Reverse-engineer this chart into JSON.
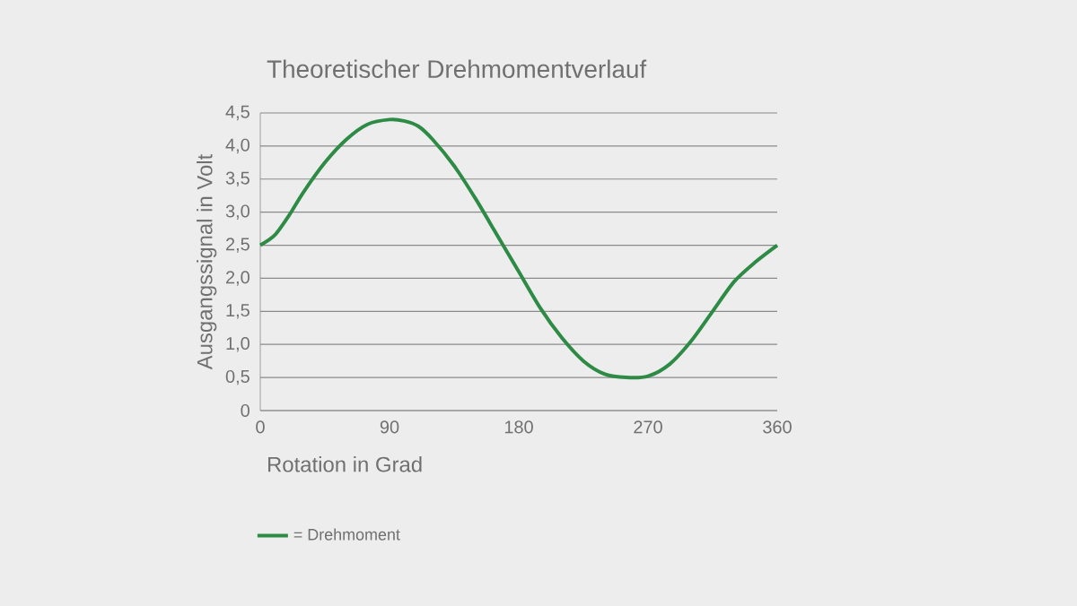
{
  "chart_data": {
    "type": "line",
    "title": "Theoretischer Drehmomentverlauf",
    "xlabel": "Rotation in Grad",
    "ylabel": "Ausgangssignal in Volt",
    "x": [
      0,
      10,
      20,
      30,
      45,
      60,
      75,
      90,
      100,
      110,
      120,
      135,
      150,
      165,
      180,
      195,
      210,
      225,
      240,
      255,
      270,
      285,
      300,
      315,
      330,
      345,
      360
    ],
    "series": [
      {
        "name": "= Drehmoment",
        "color": "#2e8b45",
        "values": [
          2.5,
          2.65,
          2.95,
          3.3,
          3.75,
          4.1,
          4.33,
          4.4,
          4.38,
          4.3,
          4.1,
          3.7,
          3.2,
          2.65,
          2.1,
          1.55,
          1.1,
          0.75,
          0.55,
          0.5,
          0.52,
          0.7,
          1.05,
          1.5,
          1.95,
          2.25,
          2.5
        ]
      }
    ],
    "xlim": [
      0,
      360
    ],
    "xticks": [
      0,
      90,
      180,
      270,
      360
    ],
    "ylim": [
      0,
      4.5
    ],
    "yticks": [
      0,
      {
        "value": 0.5,
        "label": "0,5"
      },
      {
        "value": 1,
        "label": "1,0"
      },
      {
        "value": 1.5,
        "label": "1,5"
      },
      {
        "value": 2,
        "label": "2,0"
      },
      {
        "value": 2.5,
        "label": "2,5"
      },
      {
        "value": 3,
        "label": "3,0"
      },
      {
        "value": 3.5,
        "label": "3,5"
      },
      {
        "value": 4,
        "label": "4,0"
      },
      {
        "value": 4.5,
        "label": "4,5"
      }
    ],
    "grid": "y",
    "legend": "bottom left",
    "marker": "none",
    "line_style": "solid"
  }
}
